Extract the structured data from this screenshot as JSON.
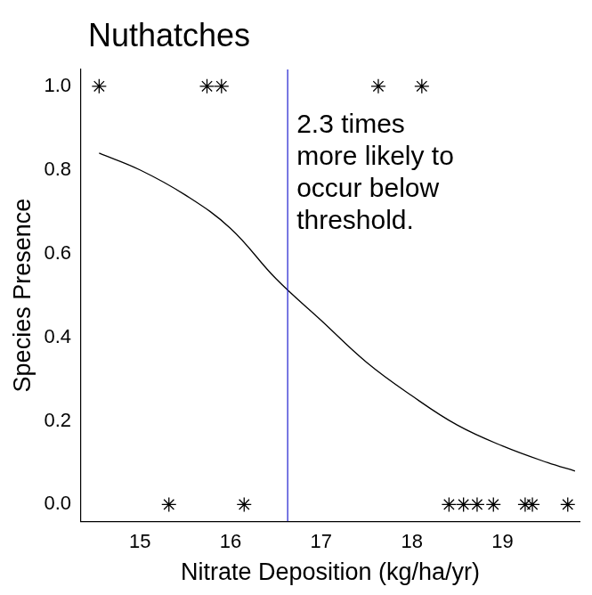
{
  "chart_data": {
    "type": "scatter",
    "title": "Nuthatches",
    "x_label": "Nitrate Deposition (kg/ha/yr)",
    "y_label": "Species Presence",
    "annotation": [
      "2.3 times",
      "more likely to",
      "occur below",
      "threshold."
    ],
    "threshold": {
      "value": 16.63,
      "color": "#1f1fd0"
    },
    "xlim": [
      14.35,
      19.85
    ],
    "xticks": [
      15,
      16,
      17,
      18,
      19
    ],
    "ylim": [
      -0.04,
      1.04
    ],
    "yticks": [
      {
        "value": 0,
        "label": "0.0"
      },
      {
        "value": 0.2,
        "label": "0.2"
      },
      {
        "value": 0.4,
        "label": "0.4"
      },
      {
        "value": 0.6,
        "label": "0.6"
      },
      {
        "value": 0.8,
        "label": "0.8"
      },
      {
        "value": 1,
        "label": "1.0"
      }
    ],
    "grid": false,
    "series": [
      {
        "type": "scatter",
        "color": "#000000",
        "marker": "asterisk",
        "x": [
          14.55,
          15.74,
          15.9,
          17.63,
          18.11,
          15.32,
          16.15,
          18.41,
          18.57,
          18.72,
          18.9,
          19.25,
          19.33,
          19.72
        ],
        "values": [
          1,
          1,
          1,
          1,
          1,
          0,
          0,
          0,
          0,
          0,
          0,
          0,
          0,
          0
        ]
      },
      {
        "type": "line",
        "color": "#000000",
        "line_style": "solid",
        "x": [
          14.55,
          15,
          15.5,
          16,
          16.5,
          17,
          17.5,
          18,
          18.5,
          19,
          19.5,
          19.8
        ],
        "values": [
          0.84,
          0.8,
          0.74,
          0.66,
          0.54,
          0.44,
          0.34,
          0.26,
          0.19,
          0.14,
          0.1,
          0.08
        ]
      }
    ]
  }
}
